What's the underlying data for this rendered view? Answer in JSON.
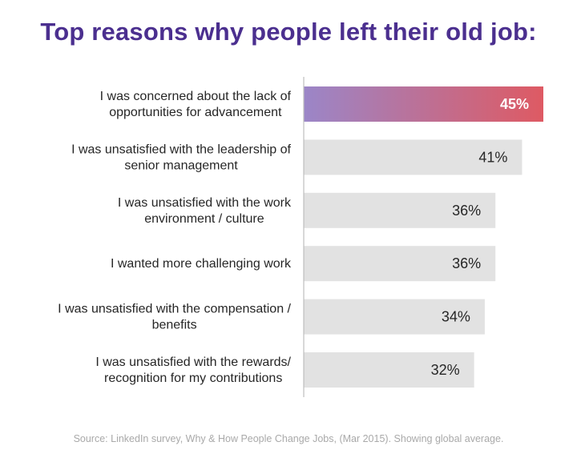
{
  "title": "Top reasons why people left their old job:",
  "source": "Source: LinkedIn survey, Why & How People Change Jobs, (Mar 2015). Showing global average.",
  "colors": {
    "title": "#4b2f8f",
    "bar": "#e2e2e2",
    "highlight_start": "#9b86c8",
    "highlight_end": "#de5a63",
    "axis": "#bfbfbf"
  },
  "chart_data": {
    "type": "bar",
    "orientation": "horizontal",
    "title": "Top reasons why people left their old job:",
    "categories": [
      [
        "I was concerned about the lack of",
        "opportunities for advancement"
      ],
      [
        "I was unsatisfied with the leadership of",
        "senior management"
      ],
      [
        "I was unsatisfied with the work",
        "environment / culture"
      ],
      [
        "I wanted more challenging work"
      ],
      [
        "I was unsatisfied with the compensation /",
        "benefits"
      ],
      [
        "I was unsatisfied with the rewards/",
        "recognition for my contributions"
      ]
    ],
    "values": [
      45,
      41,
      36,
      36,
      34,
      32
    ],
    "value_labels": [
      "45%",
      "41%",
      "36%",
      "36%",
      "34%",
      "32%"
    ],
    "highlight_index": 0,
    "xlim": [
      0,
      45
    ],
    "grid": false,
    "legend": "none"
  }
}
